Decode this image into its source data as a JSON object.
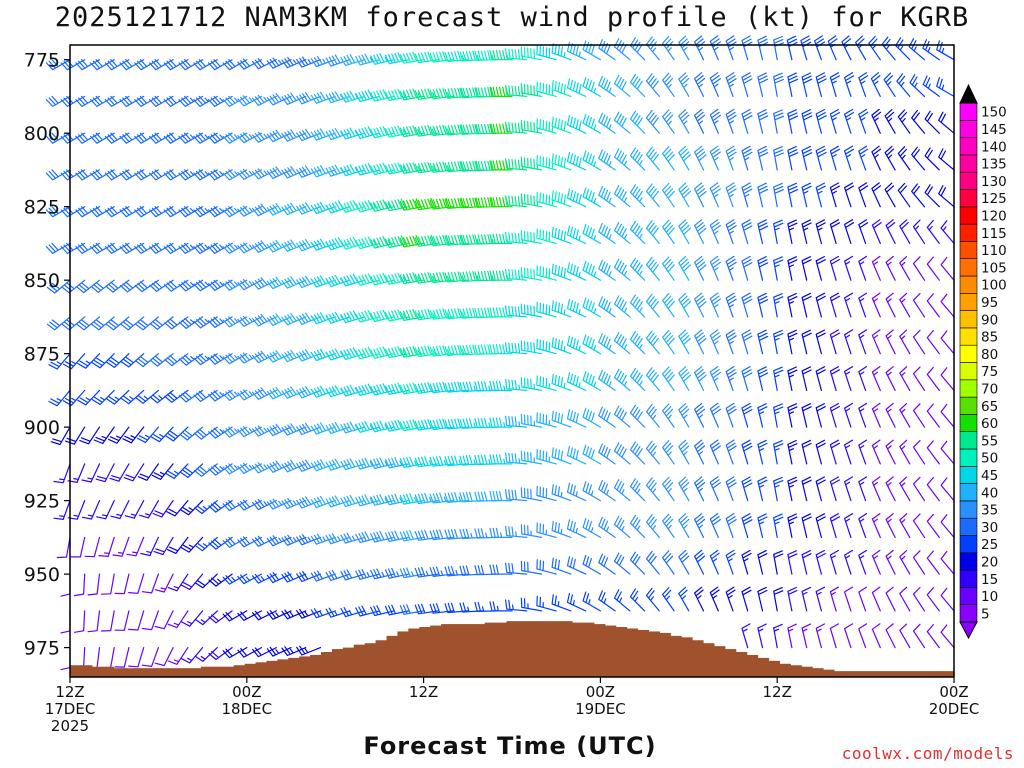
{
  "chart_data": {
    "type": "wind-barb-time-height",
    "title": "2025121712 NAM3KM forecast wind profile (kt) for KGRB",
    "xlabel": "Forecast Time (UTC)",
    "ylabel": "",
    "credit": "coolwx.com/models",
    "units": "kt",
    "y_axis": {
      "reversed": true,
      "range": [
        770,
        985
      ],
      "ticks": [
        "775",
        "800",
        "825",
        "850",
        "875",
        "900",
        "925",
        "950",
        "975"
      ]
    },
    "x_axis": {
      "range_hours": [
        0,
        60
      ],
      "ticks": [
        {
          "hour": 0,
          "lines": [
            "12Z",
            "17DEC",
            "2025"
          ]
        },
        {
          "hour": 12,
          "lines": [
            "00Z",
            "18DEC"
          ]
        },
        {
          "hour": 24,
          "lines": [
            "12Z"
          ]
        },
        {
          "hour": 36,
          "lines": [
            "00Z",
            "19DEC"
          ]
        },
        {
          "hour": 48,
          "lines": [
            "12Z"
          ]
        },
        {
          "hour": 60,
          "lines": [
            "00Z",
            "20DEC"
          ]
        }
      ]
    },
    "colorbar": {
      "labels": [
        "5",
        "10",
        "15",
        "20",
        "25",
        "30",
        "35",
        "40",
        "45",
        "50",
        "55",
        "60",
        "65",
        "70",
        "75",
        "80",
        "85",
        "90",
        "95",
        "100",
        "105",
        "110",
        "115",
        "120",
        "125",
        "130",
        "135",
        "140",
        "145",
        "150"
      ],
      "colors": [
        "#8a00ff",
        "#6a00ff",
        "#2f00ff",
        "#0000e6",
        "#0040ff",
        "#1a6cff",
        "#2a90ff",
        "#1fb0ff",
        "#00d6e6",
        "#00f0c0",
        "#00e890",
        "#14e000",
        "#5ae000",
        "#a0ff00",
        "#d8ff00",
        "#ffff00",
        "#ffe000",
        "#ffc000",
        "#ffa000",
        "#ff8c00",
        "#ff7000",
        "#ff5000",
        "#ff2000",
        "#ff0000",
        "#ff0040",
        "#ff0080",
        "#ff00a0",
        "#ff00c0",
        "#ff00e0",
        "#ff00ff"
      ]
    },
    "terrain": {
      "color": "#a0522d",
      "surface_pressure_hpa": [
        981,
        981,
        981.5,
        981.5,
        982,
        982,
        982,
        982,
        982,
        982,
        982,
        982,
        981.5,
        981.5,
        981.5,
        981,
        980.5,
        980,
        979.5,
        979,
        978.5,
        978,
        977.5,
        976.5,
        975.5,
        975,
        974,
        973.5,
        972.5,
        971,
        969.5,
        968.5,
        968,
        967.5,
        967,
        967,
        967,
        967,
        966.5,
        966.5,
        966,
        966,
        966,
        966,
        966,
        966,
        966.5,
        966.5,
        967,
        967.5,
        968,
        968.5,
        969,
        969.5,
        970,
        971,
        971.5,
        972.5,
        973.5,
        974.5,
        975.5,
        976.5,
        977.5,
        978.5,
        979.5,
        980.5,
        981,
        981.5,
        982,
        982.5,
        983,
        983,
        983,
        983,
        983,
        983,
        983,
        983,
        983,
        983,
        983
      ]
    },
    "wind_profile": {
      "step_hours": 1,
      "levels_hpa": [
        775,
        787.5,
        800,
        812.5,
        825,
        837.5,
        850,
        862.5,
        875,
        887.5,
        900,
        912.5,
        925,
        937.5,
        950,
        962.5,
        975
      ],
      "key_hours": [
        0,
        6,
        12,
        18,
        24,
        30,
        36,
        42,
        48,
        54,
        60
      ],
      "speed_kt": [
        [
          30,
          30,
          30,
          35,
          50,
          55,
          40,
          35,
          30,
          25,
          25
        ],
        [
          30,
          30,
          35,
          40,
          55,
          60,
          45,
          35,
          30,
          25,
          25
        ],
        [
          30,
          30,
          35,
          40,
          55,
          60,
          45,
          35,
          30,
          25,
          20
        ],
        [
          30,
          30,
          35,
          40,
          55,
          60,
          45,
          40,
          30,
          25,
          20
        ],
        [
          30,
          30,
          35,
          45,
          60,
          60,
          45,
          40,
          30,
          20,
          20
        ],
        [
          30,
          30,
          35,
          45,
          60,
          55,
          45,
          40,
          25,
          20,
          15
        ],
        [
          30,
          30,
          35,
          45,
          55,
          55,
          45,
          40,
          25,
          15,
          10
        ],
        [
          30,
          30,
          35,
          45,
          55,
          50,
          45,
          40,
          25,
          15,
          10
        ],
        [
          25,
          30,
          35,
          45,
          55,
          50,
          45,
          40,
          25,
          15,
          10
        ],
        [
          25,
          25,
          35,
          45,
          50,
          45,
          45,
          40,
          25,
          15,
          10
        ],
        [
          20,
          25,
          35,
          40,
          50,
          45,
          40,
          35,
          25,
          15,
          10
        ],
        [
          15,
          20,
          35,
          40,
          45,
          45,
          40,
          35,
          25,
          15,
          10
        ],
        [
          15,
          15,
          30,
          40,
          45,
          40,
          35,
          35,
          25,
          15,
          10
        ],
        [
          10,
          15,
          30,
          35,
          40,
          35,
          35,
          35,
          25,
          15,
          10
        ],
        [
          10,
          10,
          25,
          30,
          35,
          30,
          30,
          30,
          20,
          15,
          10
        ],
        [
          10,
          10,
          20,
          25,
          30,
          25,
          25,
          25,
          20,
          10,
          10
        ],
        [
          10,
          10,
          20,
          25,
          25,
          25,
          20,
          20,
          15,
          10,
          10
        ]
      ],
      "direction_deg": [
        [
          240,
          240,
          240,
          250,
          260,
          270,
          300,
          330,
          350,
          330,
          300
        ],
        [
          240,
          240,
          240,
          250,
          260,
          270,
          300,
          330,
          350,
          340,
          300
        ],
        [
          240,
          240,
          240,
          250,
          260,
          270,
          300,
          330,
          350,
          340,
          310
        ],
        [
          240,
          240,
          240,
          250,
          260,
          270,
          300,
          330,
          350,
          340,
          310
        ],
        [
          240,
          240,
          240,
          250,
          260,
          270,
          300,
          330,
          350,
          340,
          310
        ],
        [
          240,
          240,
          240,
          250,
          260,
          270,
          300,
          330,
          350,
          340,
          320
        ],
        [
          230,
          235,
          240,
          250,
          260,
          270,
          300,
          330,
          350,
          340,
          320
        ],
        [
          230,
          230,
          240,
          250,
          260,
          270,
          300,
          330,
          350,
          340,
          320
        ],
        [
          220,
          230,
          240,
          250,
          260,
          270,
          300,
          330,
          350,
          340,
          320
        ],
        [
          220,
          230,
          240,
          250,
          260,
          270,
          300,
          330,
          350,
          340,
          320
        ],
        [
          210,
          220,
          240,
          250,
          260,
          270,
          300,
          330,
          350,
          340,
          320
        ],
        [
          200,
          215,
          240,
          250,
          260,
          270,
          300,
          330,
          350,
          340,
          320
        ],
        [
          200,
          210,
          240,
          250,
          260,
          270,
          300,
          330,
          350,
          340,
          320
        ],
        [
          190,
          205,
          240,
          250,
          260,
          270,
          300,
          330,
          350,
          340,
          320
        ],
        [
          180,
          200,
          240,
          250,
          260,
          270,
          300,
          330,
          350,
          340,
          320
        ],
        [
          180,
          200,
          240,
          250,
          260,
          270,
          300,
          330,
          350,
          340,
          320
        ],
        [
          180,
          200,
          240,
          250,
          260,
          270,
          300,
          330,
          350,
          340,
          320
        ]
      ]
    }
  }
}
